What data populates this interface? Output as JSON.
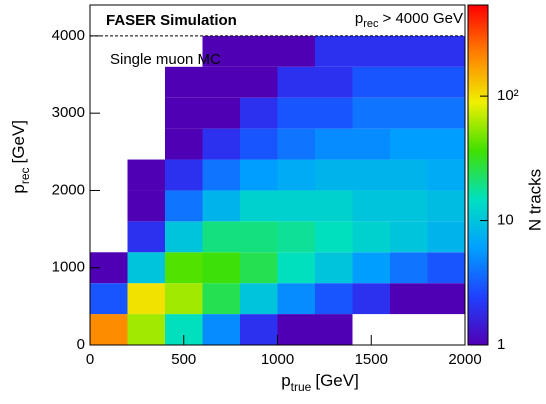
{
  "chart_data": {
    "type": "heatmap",
    "title": "FASER Simulation",
    "annotation": "Single muon MC",
    "threshold_label": {
      "main": "p",
      "sub": "rec",
      "rest": "> 4000 GeV"
    },
    "threshold": 4000,
    "x_label": {
      "main": "p",
      "sub": "true",
      "unit": "[GeV]"
    },
    "y_label": {
      "main": "p",
      "sub": "rec",
      "unit": "[GeV]"
    },
    "colorbar_label": "N tracks",
    "xbins": [
      0,
      200,
      400,
      600,
      800,
      1000,
      1200,
      1400,
      1600,
      1800,
      2000
    ],
    "ybins": [
      0,
      400,
      800,
      1200,
      1600,
      2000,
      2400,
      2800,
      3200,
      3600,
      4000
    ],
    "z": [
      [
        200,
        60,
        15,
        5,
        2,
        1,
        1,
        0,
        0,
        0
      ],
      [
        3,
        100,
        60,
        25,
        10,
        5,
        3,
        2,
        1,
        1
      ],
      [
        1,
        10,
        40,
        35,
        25,
        15,
        10,
        6,
        4,
        3
      ],
      [
        0,
        2,
        10,
        20,
        20,
        18,
        15,
        12,
        10,
        8
      ],
      [
        0,
        1,
        4,
        8,
        12,
        12,
        12,
        10,
        10,
        9
      ],
      [
        0,
        1,
        2,
        4,
        6,
        7,
        8,
        8,
        8,
        7
      ],
      [
        0,
        0,
        1,
        2,
        3,
        4,
        5,
        5,
        6,
        6
      ],
      [
        0,
        0,
        1,
        1,
        2,
        3,
        3,
        4,
        4,
        4
      ],
      [
        0,
        0,
        1,
        1,
        1,
        2,
        2,
        3,
        3,
        3
      ],
      [
        0,
        0,
        0,
        1,
        1,
        1,
        2,
        2,
        2,
        2
      ]
    ],
    "xlim": [
      0,
      2000
    ],
    "xticks": [
      0,
      500,
      1000,
      1500,
      2000
    ],
    "ylim": [
      0,
      4400
    ],
    "yticks": [
      0,
      1000,
      2000,
      3000,
      4000
    ],
    "zlim": [
      1,
      540
    ],
    "zlog": true,
    "zticks": [
      1,
      10,
      {
        "value": 100,
        "label": "10²"
      }
    ],
    "colormap": [
      "#5000b4",
      "#2040ff",
      "#00a0ff",
      "#00e0c0",
      "#40e000",
      "#f0f000",
      "#ff8000",
      "#ff0000"
    ]
  }
}
